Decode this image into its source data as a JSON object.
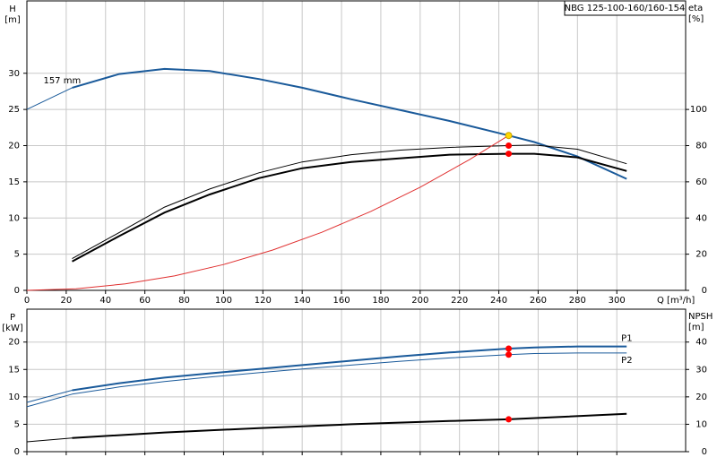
{
  "chart_data": [
    {
      "type": "line",
      "title": "NBG 125-100-160/160-154",
      "ylabel": "H",
      "yunit": "[m]",
      "y2label": "eta",
      "y2unit": "[%]",
      "xlabel": "Q [m³/h]",
      "xlim": [
        0,
        335
      ],
      "ylim": [
        0,
        40
      ],
      "y2lim": [
        0,
        160
      ],
      "xticks": [
        0,
        20,
        40,
        60,
        80,
        100,
        120,
        140,
        160,
        180,
        200,
        220,
        240,
        260,
        280,
        300
      ],
      "yticks": [
        0,
        5,
        10,
        15,
        20,
        25,
        30
      ],
      "y2ticks": [
        0,
        20,
        40,
        60,
        80,
        100
      ],
      "grid": true,
      "series": [
        {
          "name": "157 mm",
          "color": "#1a5a9a",
          "width": 2,
          "x": [
            23,
            47,
            70,
            93,
            118,
            140,
            165,
            190,
            215,
            245,
            258,
            280,
            305
          ],
          "values": [
            28,
            29.9,
            30.6,
            30.3,
            29.2,
            28,
            26.4,
            24.9,
            23.4,
            21.4,
            20.5,
            18.5,
            15.4
          ]
        },
        {
          "color": "#1a5a9a",
          "width": 1,
          "x": [
            0,
            23
          ],
          "values": [
            25,
            28
          ]
        },
        {
          "color": "#000000",
          "width": 1,
          "axis": "y2",
          "x": [
            23,
            47,
            70,
            93,
            118,
            140,
            165,
            190,
            215,
            245,
            258,
            280,
            305
          ],
          "values": [
            17.6,
            32,
            46,
            56,
            65,
            71,
            75,
            77.5,
            79,
            80,
            80.3,
            78,
            70
          ]
        },
        {
          "color": "#000000",
          "width": 2,
          "axis": "y2",
          "x": [
            23,
            47,
            70,
            93,
            118,
            140,
            165,
            190,
            215,
            245,
            258,
            280,
            305
          ],
          "values": [
            16,
            30,
            43,
            53,
            62,
            67.5,
            71,
            73,
            75,
            75.5,
            75.5,
            73.5,
            66
          ]
        },
        {
          "color": "#e03030",
          "width": 1,
          "x": [
            0,
            25,
            50,
            75,
            100,
            125,
            150,
            175,
            200,
            225,
            245
          ],
          "values": [
            0,
            0.22,
            0.89,
            2,
            3.57,
            5.57,
            8.02,
            10.92,
            14.26,
            18.05,
            21.4
          ]
        }
      ],
      "points": [
        {
          "x": 245,
          "y": 21.4,
          "color": "#ffd800"
        },
        {
          "x": 245,
          "y": 80,
          "axis": "y2",
          "color": "#ff0000"
        },
        {
          "x": 245,
          "y": 75.5,
          "axis": "y2",
          "color": "#ff0000"
        }
      ]
    },
    {
      "type": "line",
      "ylabel": "P",
      "yunit": "[kW]",
      "y2label": "NPSH",
      "y2unit": "[m]",
      "xlim": [
        0,
        335
      ],
      "ylim": [
        0,
        26
      ],
      "y2lim": [
        0,
        52
      ],
      "yticks": [
        0,
        5,
        10,
        15,
        20
      ],
      "y2ticks": [
        0,
        10,
        20,
        30,
        40
      ],
      "grid": true,
      "series": [
        {
          "name": "P1",
          "color": "#1a5a9a",
          "width": 2,
          "x": [
            23,
            47,
            70,
            93,
            118,
            140,
            165,
            190,
            215,
            245,
            258,
            280,
            305
          ],
          "values": [
            11.2,
            12.5,
            13.5,
            14.3,
            15.1,
            15.8,
            16.6,
            17.4,
            18.1,
            18.8,
            19,
            19.2,
            19.2
          ]
        },
        {
          "color": "#1a5a9a",
          "width": 1,
          "x": [
            0,
            23
          ],
          "values": [
            9,
            11.2
          ]
        },
        {
          "name": "P2",
          "color": "#1a5a9a",
          "width": 1,
          "x": [
            23,
            47,
            70,
            93,
            118,
            140,
            165,
            190,
            215,
            245,
            258,
            280,
            305
          ],
          "values": [
            10.5,
            11.8,
            12.8,
            13.6,
            14.4,
            15.1,
            15.8,
            16.5,
            17.1,
            17.7,
            17.9,
            18,
            18
          ]
        },
        {
          "color": "#1a5a9a",
          "width": 1,
          "x": [
            0,
            23
          ],
          "values": [
            8.2,
            10.5
          ]
        },
        {
          "color": "#000000",
          "width": 2,
          "axis": "y2",
          "x": [
            23,
            70,
            118,
            165,
            215,
            245,
            305
          ],
          "values": [
            5,
            7,
            8.6,
            10,
            11.2,
            11.8,
            13.8
          ]
        },
        {
          "color": "#000000",
          "width": 1,
          "axis": "y2",
          "x": [
            0,
            23
          ],
          "values": [
            3.6,
            5
          ]
        }
      ],
      "points": [
        {
          "x": 245,
          "y": 18.8,
          "color": "#ff0000"
        },
        {
          "x": 245,
          "y": 17.7,
          "color": "#ff0000"
        },
        {
          "x": 245,
          "y": 11.8,
          "axis": "y2",
          "color": "#ff0000"
        }
      ]
    }
  ]
}
